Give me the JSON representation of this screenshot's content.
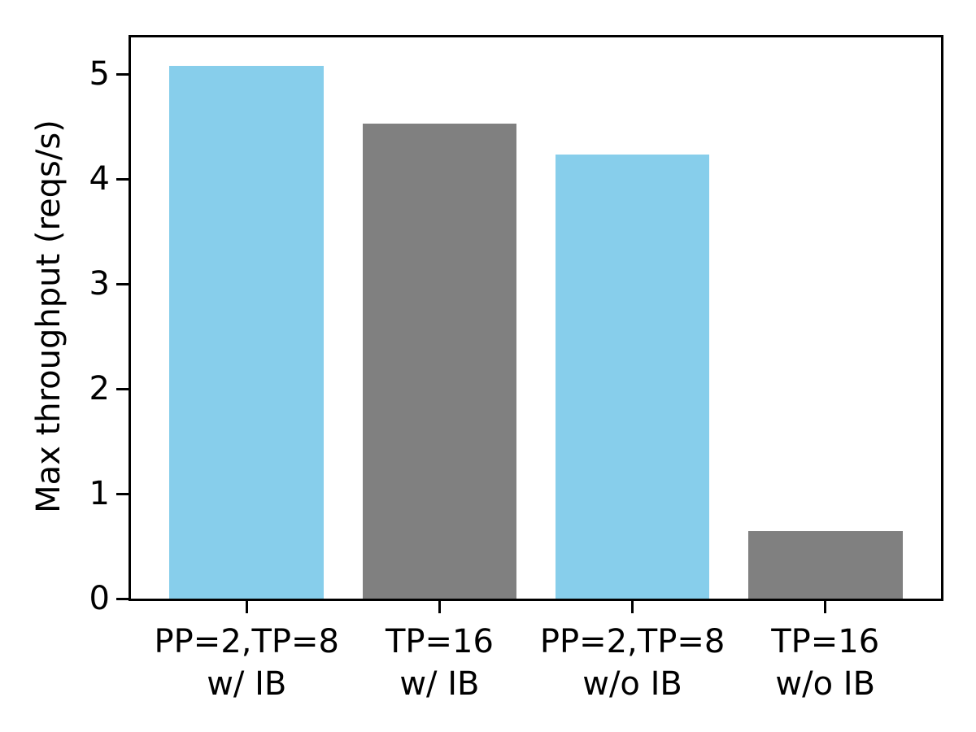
{
  "chart_data": {
    "type": "bar",
    "title": "",
    "xlabel": "",
    "ylabel": "Max throughput (reqs/s)",
    "categories": [
      "PP=2,TP=8\nw/ IB",
      "TP=16\nw/ IB",
      "PP=2,TP=8\nw/o IB",
      "TP=16\nw/o IB"
    ],
    "values": [
      5.08,
      4.53,
      4.23,
      0.64
    ],
    "bar_colors": [
      "#87CEEB",
      "#808080",
      "#87CEEB",
      "#808080"
    ],
    "bar_width": 0.8,
    "yticks": [
      0,
      1,
      2,
      3,
      4,
      5
    ],
    "ylim": [
      0,
      5.35
    ],
    "xlim": [
      -0.6,
      3.6
    ],
    "grid": false,
    "legend_position": "none",
    "axis_color": "#000000",
    "background_color": "#ffffff"
  }
}
